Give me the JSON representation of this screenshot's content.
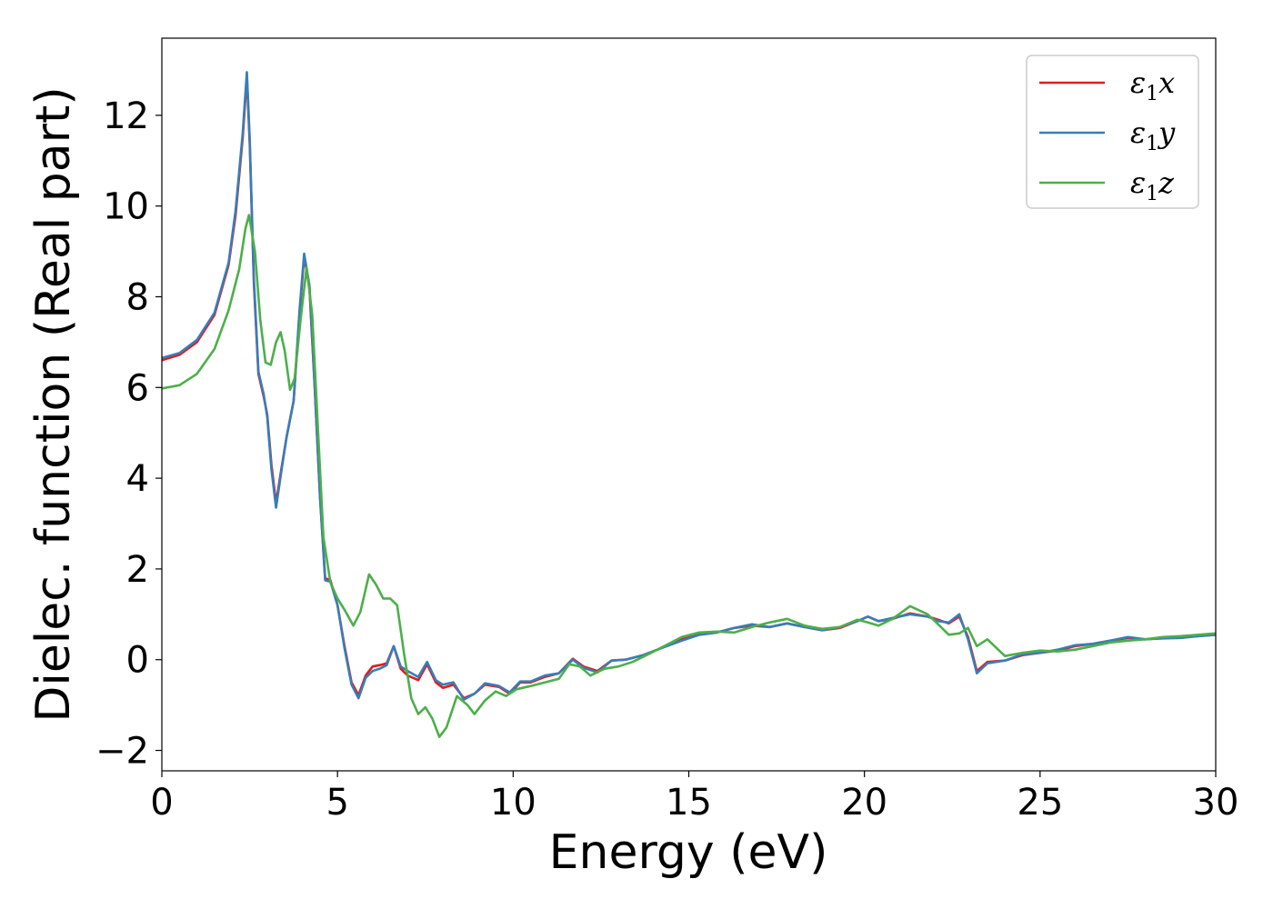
{
  "chart_data": {
    "type": "line",
    "title": "",
    "xlabel": "Energy (eV)",
    "ylabel": "Dielec. function (Real part)",
    "xlim": [
      0,
      30
    ],
    "ylim": [
      -2.45,
      13.7
    ],
    "xticks": [
      0,
      5,
      10,
      15,
      20,
      25,
      30
    ],
    "yticks": [
      -2,
      0,
      2,
      4,
      6,
      8,
      10,
      12
    ],
    "grid": false,
    "legend_position": "top-right",
    "series": [
      {
        "name": "ε1x",
        "legend_main": "ε",
        "legend_sub": "1",
        "legend_suffix": "x",
        "color": "#e41a1c",
        "points": [
          [
            0,
            6.6
          ],
          [
            0.5,
            6.72
          ],
          [
            1.0,
            7.0
          ],
          [
            1.5,
            7.6
          ],
          [
            1.9,
            8.7
          ],
          [
            2.1,
            9.8
          ],
          [
            2.3,
            11.5
          ],
          [
            2.42,
            12.85
          ],
          [
            2.5,
            11.4
          ],
          [
            2.62,
            8.3
          ],
          [
            2.75,
            6.3
          ],
          [
            2.9,
            5.8
          ],
          [
            3.0,
            5.4
          ],
          [
            3.12,
            4.3
          ],
          [
            3.25,
            3.45
          ],
          [
            3.4,
            4.2
          ],
          [
            3.55,
            4.9
          ],
          [
            3.75,
            5.7
          ],
          [
            3.92,
            7.6
          ],
          [
            4.05,
            8.9
          ],
          [
            4.2,
            8.2
          ],
          [
            4.35,
            6.0
          ],
          [
            4.5,
            3.6
          ],
          [
            4.65,
            1.8
          ],
          [
            4.8,
            1.75
          ],
          [
            5.0,
            1.2
          ],
          [
            5.2,
            0.3
          ],
          [
            5.4,
            -0.5
          ],
          [
            5.6,
            -0.78
          ],
          [
            5.8,
            -0.35
          ],
          [
            6.0,
            -0.15
          ],
          [
            6.2,
            -0.12
          ],
          [
            6.4,
            -0.08
          ],
          [
            6.6,
            0.3
          ],
          [
            6.8,
            -0.2
          ],
          [
            7.0,
            -0.35
          ],
          [
            7.3,
            -0.45
          ],
          [
            7.55,
            -0.1
          ],
          [
            7.8,
            -0.5
          ],
          [
            8.0,
            -0.62
          ],
          [
            8.3,
            -0.55
          ],
          [
            8.6,
            -0.85
          ],
          [
            8.9,
            -0.75
          ],
          [
            9.2,
            -0.55
          ],
          [
            9.6,
            -0.6
          ],
          [
            9.9,
            -0.75
          ],
          [
            10.2,
            -0.5
          ],
          [
            10.5,
            -0.5
          ],
          [
            10.9,
            -0.38
          ],
          [
            11.3,
            -0.3
          ],
          [
            11.7,
            0.02
          ],
          [
            12.0,
            -0.15
          ],
          [
            12.4,
            -0.25
          ],
          [
            12.8,
            -0.02
          ],
          [
            13.2,
            0.0
          ],
          [
            13.7,
            0.1
          ],
          [
            14.2,
            0.25
          ],
          [
            14.8,
            0.45
          ],
          [
            15.3,
            0.55
          ],
          [
            15.8,
            0.6
          ],
          [
            16.3,
            0.7
          ],
          [
            16.8,
            0.75
          ],
          [
            17.3,
            0.72
          ],
          [
            17.8,
            0.8
          ],
          [
            18.3,
            0.72
          ],
          [
            18.8,
            0.65
          ],
          [
            19.3,
            0.7
          ],
          [
            19.8,
            0.85
          ],
          [
            20.1,
            0.95
          ],
          [
            20.4,
            0.85
          ],
          [
            20.8,
            0.9
          ],
          [
            21.3,
            1.02
          ],
          [
            21.8,
            0.95
          ],
          [
            22.1,
            0.88
          ],
          [
            22.4,
            0.8
          ],
          [
            22.7,
            0.95
          ],
          [
            22.95,
            0.5
          ],
          [
            23.2,
            -0.25
          ],
          [
            23.5,
            -0.05
          ],
          [
            24.0,
            -0.02
          ],
          [
            24.5,
            0.1
          ],
          [
            25.0,
            0.15
          ],
          [
            25.5,
            0.2
          ],
          [
            26.0,
            0.3
          ],
          [
            26.5,
            0.35
          ],
          [
            27.0,
            0.42
          ],
          [
            27.5,
            0.48
          ],
          [
            28.0,
            0.45
          ],
          [
            28.5,
            0.48
          ],
          [
            29.0,
            0.5
          ],
          [
            29.5,
            0.52
          ],
          [
            30,
            0.55
          ]
        ]
      },
      {
        "name": "ε1y",
        "legend_main": "ε",
        "legend_sub": "1",
        "legend_suffix": "y",
        "color": "#377eb8",
        "points": [
          [
            0,
            6.65
          ],
          [
            0.5,
            6.76
          ],
          [
            1.0,
            7.05
          ],
          [
            1.5,
            7.65
          ],
          [
            1.9,
            8.75
          ],
          [
            2.1,
            9.9
          ],
          [
            2.3,
            11.6
          ],
          [
            2.42,
            12.95
          ],
          [
            2.5,
            11.5
          ],
          [
            2.62,
            8.4
          ],
          [
            2.75,
            6.35
          ],
          [
            2.9,
            5.85
          ],
          [
            3.0,
            5.35
          ],
          [
            3.12,
            4.2
          ],
          [
            3.25,
            3.35
          ],
          [
            3.4,
            4.15
          ],
          [
            3.55,
            4.9
          ],
          [
            3.75,
            5.7
          ],
          [
            3.92,
            7.7
          ],
          [
            4.05,
            8.95
          ],
          [
            4.2,
            8.25
          ],
          [
            4.35,
            6.05
          ],
          [
            4.5,
            3.6
          ],
          [
            4.65,
            1.75
          ],
          [
            4.8,
            1.72
          ],
          [
            5.0,
            1.2
          ],
          [
            5.2,
            0.25
          ],
          [
            5.4,
            -0.55
          ],
          [
            5.6,
            -0.85
          ],
          [
            5.8,
            -0.4
          ],
          [
            6.0,
            -0.25
          ],
          [
            6.2,
            -0.2
          ],
          [
            6.4,
            -0.12
          ],
          [
            6.6,
            0.3
          ],
          [
            6.8,
            -0.15
          ],
          [
            7.0,
            -0.25
          ],
          [
            7.3,
            -0.38
          ],
          [
            7.55,
            -0.05
          ],
          [
            7.8,
            -0.45
          ],
          [
            8.0,
            -0.55
          ],
          [
            8.3,
            -0.5
          ],
          [
            8.6,
            -0.88
          ],
          [
            8.9,
            -0.75
          ],
          [
            9.2,
            -0.52
          ],
          [
            9.6,
            -0.58
          ],
          [
            9.9,
            -0.72
          ],
          [
            10.2,
            -0.48
          ],
          [
            10.5,
            -0.48
          ],
          [
            10.9,
            -0.35
          ],
          [
            11.3,
            -0.3
          ],
          [
            11.7,
            0.0
          ],
          [
            12.0,
            -0.18
          ],
          [
            12.4,
            -0.28
          ],
          [
            12.8,
            -0.02
          ],
          [
            13.2,
            0.0
          ],
          [
            13.7,
            0.1
          ],
          [
            14.2,
            0.25
          ],
          [
            14.8,
            0.42
          ],
          [
            15.3,
            0.55
          ],
          [
            15.8,
            0.6
          ],
          [
            16.3,
            0.7
          ],
          [
            16.8,
            0.78
          ],
          [
            17.3,
            0.72
          ],
          [
            17.8,
            0.8
          ],
          [
            18.3,
            0.72
          ],
          [
            18.8,
            0.65
          ],
          [
            19.3,
            0.72
          ],
          [
            19.8,
            0.85
          ],
          [
            20.1,
            0.95
          ],
          [
            20.4,
            0.85
          ],
          [
            20.8,
            0.92
          ],
          [
            21.3,
            1.0
          ],
          [
            21.8,
            0.95
          ],
          [
            22.1,
            0.85
          ],
          [
            22.4,
            0.82
          ],
          [
            22.7,
            1.0
          ],
          [
            22.95,
            0.45
          ],
          [
            23.2,
            -0.3
          ],
          [
            23.5,
            -0.08
          ],
          [
            24.0,
            -0.02
          ],
          [
            24.5,
            0.12
          ],
          [
            25.0,
            0.15
          ],
          [
            25.5,
            0.22
          ],
          [
            26.0,
            0.32
          ],
          [
            26.5,
            0.35
          ],
          [
            27.0,
            0.42
          ],
          [
            27.5,
            0.5
          ],
          [
            28.0,
            0.45
          ],
          [
            28.5,
            0.47
          ],
          [
            29.0,
            0.48
          ],
          [
            29.5,
            0.52
          ],
          [
            30,
            0.55
          ]
        ]
      },
      {
        "name": "ε1z",
        "legend_main": "ε",
        "legend_sub": "1",
        "legend_suffix": "z",
        "color": "#4daf4a",
        "points": [
          [
            0,
            5.98
          ],
          [
            0.5,
            6.05
          ],
          [
            1.0,
            6.3
          ],
          [
            1.5,
            6.85
          ],
          [
            1.9,
            7.7
          ],
          [
            2.2,
            8.6
          ],
          [
            2.38,
            9.5
          ],
          [
            2.48,
            9.8
          ],
          [
            2.65,
            9.0
          ],
          [
            2.8,
            7.5
          ],
          [
            2.95,
            6.55
          ],
          [
            3.1,
            6.5
          ],
          [
            3.25,
            7.0
          ],
          [
            3.38,
            7.22
          ],
          [
            3.5,
            6.8
          ],
          [
            3.65,
            5.95
          ],
          [
            3.78,
            6.2
          ],
          [
            3.95,
            7.5
          ],
          [
            4.12,
            8.65
          ],
          [
            4.28,
            7.6
          ],
          [
            4.45,
            5.0
          ],
          [
            4.6,
            2.7
          ],
          [
            4.8,
            1.7
          ],
          [
            5.0,
            1.35
          ],
          [
            5.2,
            1.1
          ],
          [
            5.45,
            0.75
          ],
          [
            5.65,
            1.05
          ],
          [
            5.9,
            1.88
          ],
          [
            6.1,
            1.65
          ],
          [
            6.3,
            1.35
          ],
          [
            6.5,
            1.35
          ],
          [
            6.7,
            1.2
          ],
          [
            6.9,
            0.1
          ],
          [
            7.1,
            -0.85
          ],
          [
            7.3,
            -1.2
          ],
          [
            7.5,
            -1.05
          ],
          [
            7.7,
            -1.3
          ],
          [
            7.9,
            -1.7
          ],
          [
            8.1,
            -1.5
          ],
          [
            8.4,
            -0.8
          ],
          [
            8.7,
            -1.0
          ],
          [
            8.9,
            -1.2
          ],
          [
            9.2,
            -0.9
          ],
          [
            9.5,
            -0.7
          ],
          [
            9.8,
            -0.8
          ],
          [
            10.1,
            -0.65
          ],
          [
            10.5,
            -0.58
          ],
          [
            10.9,
            -0.5
          ],
          [
            11.3,
            -0.42
          ],
          [
            11.6,
            -0.1
          ],
          [
            11.9,
            -0.15
          ],
          [
            12.2,
            -0.35
          ],
          [
            12.6,
            -0.2
          ],
          [
            13.0,
            -0.15
          ],
          [
            13.4,
            -0.05
          ],
          [
            13.8,
            0.1
          ],
          [
            14.3,
            0.3
          ],
          [
            14.8,
            0.5
          ],
          [
            15.3,
            0.6
          ],
          [
            15.8,
            0.62
          ],
          [
            16.3,
            0.6
          ],
          [
            16.8,
            0.72
          ],
          [
            17.3,
            0.82
          ],
          [
            17.8,
            0.9
          ],
          [
            18.3,
            0.75
          ],
          [
            18.8,
            0.68
          ],
          [
            19.3,
            0.72
          ],
          [
            19.8,
            0.88
          ],
          [
            20.1,
            0.82
          ],
          [
            20.4,
            0.75
          ],
          [
            20.8,
            0.9
          ],
          [
            21.3,
            1.18
          ],
          [
            21.8,
            1.0
          ],
          [
            22.1,
            0.78
          ],
          [
            22.4,
            0.55
          ],
          [
            22.7,
            0.58
          ],
          [
            22.95,
            0.7
          ],
          [
            23.2,
            0.3
          ],
          [
            23.5,
            0.45
          ],
          [
            24.0,
            0.08
          ],
          [
            24.5,
            0.15
          ],
          [
            25.0,
            0.2
          ],
          [
            25.5,
            0.18
          ],
          [
            26.0,
            0.22
          ],
          [
            26.5,
            0.3
          ],
          [
            27.0,
            0.38
          ],
          [
            27.5,
            0.42
          ],
          [
            28.0,
            0.45
          ],
          [
            28.5,
            0.5
          ],
          [
            29.0,
            0.52
          ],
          [
            29.5,
            0.55
          ],
          [
            30,
            0.58
          ]
        ]
      }
    ]
  }
}
